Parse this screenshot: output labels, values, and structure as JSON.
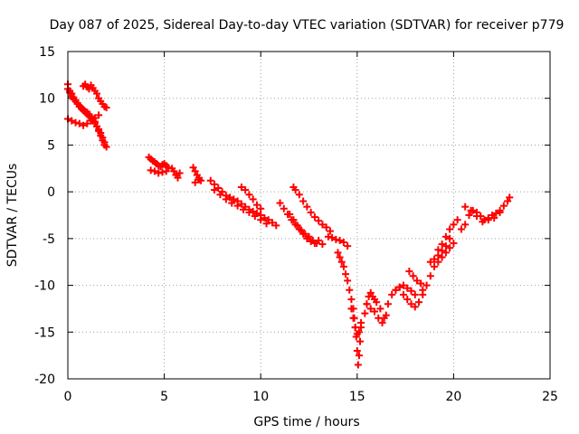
{
  "chart_data": {
    "type": "scatter",
    "title": "Day 087 of 2025, Sidereal Day-to-day VTEC variation (SDTVAR) for receiver p779",
    "xlabel": "GPS time / hours",
    "ylabel": "SDTVAR / TECUs",
    "xlim": [
      0,
      25
    ],
    "ylim": [
      -20,
      15
    ],
    "xticks": [
      0,
      5,
      10,
      15,
      20,
      25
    ],
    "yticks": [
      -20,
      -15,
      -10,
      -5,
      0,
      5,
      10,
      15
    ],
    "grid": true,
    "marker": "plus",
    "color": "#ff0000",
    "series": [
      {
        "name": "SDTVAR",
        "x": [
          0.0,
          0.1,
          0.2,
          0.3,
          0.4,
          0.5,
          0.6,
          0.7,
          0.8,
          0.9,
          1.0,
          1.1,
          1.2,
          1.3,
          1.4,
          1.5,
          1.6,
          1.7,
          1.8,
          1.9,
          2.0,
          0.0,
          0.1,
          0.2,
          0.3,
          0.4,
          0.5,
          0.6,
          0.7,
          0.8,
          0.9,
          1.0,
          1.1,
          1.2,
          1.3,
          1.4,
          1.5,
          1.6,
          1.7,
          1.8,
          1.9,
          0.0,
          0.2,
          0.4,
          0.6,
          0.8,
          1.0,
          1.2,
          1.4,
          1.6,
          0.8,
          0.9,
          1.0,
          1.1,
          1.2,
          1.3,
          1.4,
          1.5,
          1.6,
          1.7,
          1.8,
          1.9,
          2.0,
          4.2,
          4.3,
          4.4,
          4.5,
          4.6,
          4.7,
          4.8,
          4.9,
          5.0,
          5.1,
          5.2,
          4.3,
          4.5,
          4.7,
          4.9,
          5.1,
          5.4,
          5.5,
          5.6,
          5.7,
          5.8,
          6.5,
          6.6,
          6.7,
          6.8,
          6.9,
          6.6,
          6.8,
          7.4,
          7.6,
          7.8,
          8.0,
          8.2,
          8.4,
          8.6,
          8.8,
          9.0,
          9.2,
          9.4,
          9.6,
          9.8,
          10.0,
          10.2,
          10.4,
          10.6,
          10.8,
          7.6,
          7.9,
          8.2,
          8.5,
          8.8,
          9.1,
          9.4,
          9.7,
          10.0,
          10.3,
          9.0,
          9.2,
          9.4,
          9.6,
          9.8,
          10.0,
          11.0,
          11.2,
          11.4,
          11.6,
          11.8,
          12.0,
          12.2,
          12.4,
          12.6,
          12.8,
          13.0,
          13.2,
          11.7,
          11.8,
          12.0,
          12.2,
          12.4,
          12.6,
          12.8,
          13.0,
          13.2,
          13.4,
          13.6,
          11.5,
          11.7,
          11.9,
          12.1,
          12.3,
          12.5,
          12.7,
          12.9,
          13.5,
          13.7,
          13.9,
          14.1,
          14.3,
          14.5,
          14.0,
          14.1,
          14.2,
          14.3,
          14.4,
          14.5,
          14.6,
          14.7,
          14.8,
          14.85,
          14.9,
          14.95,
          15.0,
          15.05,
          15.1,
          15.15,
          15.2,
          14.7,
          14.8,
          14.9,
          15.0,
          15.1,
          15.2,
          15.4,
          15.5,
          15.6,
          15.7,
          15.8,
          15.9,
          16.0,
          16.2,
          16.4,
          16.6,
          16.8,
          17.0,
          17.2,
          17.4,
          17.6,
          17.8,
          18.0,
          15.5,
          15.7,
          15.9,
          16.1,
          16.3,
          16.5,
          17.0,
          17.2,
          17.4,
          17.6,
          17.8,
          18.0,
          18.2,
          18.4,
          17.7,
          17.9,
          18.1,
          18.3,
          18.4,
          18.6,
          18.8,
          19.0,
          19.2,
          19.4,
          19.6,
          19.8,
          20.0,
          18.8,
          19.0,
          19.2,
          19.4,
          19.6,
          19.8,
          19.2,
          19.4,
          19.6,
          19.8,
          20.0,
          20.2,
          20.4,
          20.6,
          20.8,
          21.0,
          21.2,
          21.4,
          21.6,
          21.8,
          22.0,
          22.2,
          22.4,
          22.6,
          22.8,
          22.9,
          20.6,
          20.9,
          21.2,
          21.5,
          21.8,
          22.1,
          22.4
        ],
        "y": [
          11.5,
          10.8,
          10.5,
          10.1,
          9.8,
          9.5,
          9.2,
          9.0,
          8.8,
          8.6,
          8.5,
          8.3,
          8.0,
          7.8,
          7.5,
          7.0,
          6.5,
          6.0,
          5.5,
          5.0,
          4.8,
          11.0,
          10.6,
          10.2,
          9.9,
          9.7,
          9.4,
          9.1,
          8.9,
          8.7,
          8.5,
          8.3,
          8.1,
          7.9,
          7.6,
          7.3,
          7.0,
          6.7,
          6.3,
          5.8,
          5.3,
          7.8,
          7.6,
          7.4,
          7.3,
          7.1,
          7.3,
          7.6,
          7.9,
          8.2,
          11.3,
          11.5,
          11.2,
          11.0,
          11.4,
          11.1,
          10.8,
          10.5,
          10.0,
          9.7,
          9.4,
          9.1,
          9.0,
          3.7,
          3.5,
          3.3,
          3.2,
          3.0,
          2.8,
          2.7,
          2.9,
          3.0,
          2.8,
          2.6,
          2.3,
          2.2,
          2.0,
          2.1,
          2.2,
          2.5,
          2.2,
          1.8,
          1.5,
          2.0,
          2.6,
          2.2,
          1.8,
          1.5,
          1.2,
          1.0,
          1.3,
          1.2,
          0.8,
          0.4,
          0.0,
          -0.4,
          -0.6,
          -0.8,
          -1.0,
          -1.3,
          -1.6,
          -1.9,
          -2.1,
          -2.3,
          -2.5,
          -2.8,
          -3.0,
          -3.3,
          -3.6,
          0.2,
          -0.3,
          -0.8,
          -1.2,
          -1.5,
          -1.9,
          -2.2,
          -2.6,
          -3.0,
          -3.4,
          0.5,
          0.2,
          -0.3,
          -0.8,
          -1.4,
          -1.8,
          -1.2,
          -1.8,
          -2.4,
          -3.0,
          -3.5,
          -4.0,
          -4.5,
          -5.0,
          -5.3,
          -5.5,
          -5.2,
          -5.6,
          0.5,
          0.2,
          -0.3,
          -1.0,
          -1.6,
          -2.2,
          -2.7,
          -3.1,
          -3.5,
          -3.8,
          -4.2,
          -2.4,
          -3.0,
          -3.6,
          -4.1,
          -4.5,
          -4.8,
          -5.2,
          -5.5,
          -4.8,
          -4.9,
          -5.1,
          -5.2,
          -5.4,
          -5.8,
          -6.5,
          -7.0,
          -7.5,
          -8.0,
          -8.8,
          -9.5,
          -10.5,
          -11.5,
          -12.5,
          -13.5,
          -14.5,
          -15.5,
          -17.0,
          -18.5,
          -17.5,
          -16.0,
          -14.5,
          -12.5,
          -13.5,
          -14.5,
          -15.2,
          -15.0,
          -14.0,
          -13.0,
          -12.0,
          -11.2,
          -10.8,
          -11.2,
          -11.5,
          -11.8,
          -12.5,
          -13.5,
          -12.0,
          -11.0,
          -10.5,
          -10.2,
          -10.0,
          -10.3,
          -10.6,
          -11.0,
          -12.0,
          -12.5,
          -12.8,
          -13.5,
          -14.0,
          -13.2,
          -10.5,
          -10.2,
          -11.0,
          -11.5,
          -12.0,
          -12.3,
          -11.8,
          -11.0,
          -8.5,
          -9.0,
          -9.5,
          -9.8,
          -10.5,
          -10.0,
          -9.0,
          -8.0,
          -7.5,
          -7.0,
          -6.5,
          -6.0,
          -5.5,
          -7.5,
          -7.2,
          -6.8,
          -6.3,
          -5.8,
          -5.0,
          -6.2,
          -5.6,
          -4.8,
          -4.0,
          -3.5,
          -3.0,
          -4.0,
          -3.5,
          -2.5,
          -2.0,
          -2.2,
          -2.6,
          -3.0,
          -2.8,
          -2.5,
          -2.3,
          -2.0,
          -1.5,
          -1.0,
          -0.6,
          -1.6,
          -2.0,
          -2.6,
          -3.2,
          -3.0,
          -2.8,
          -2.2
        ]
      }
    ]
  }
}
